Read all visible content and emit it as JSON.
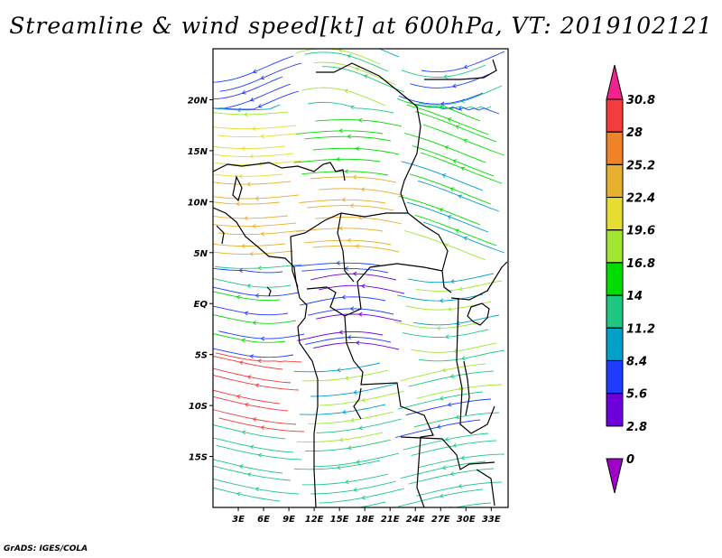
{
  "title": "Streamline & wind speed[kt] at 600hPa, VT: 2019102121",
  "credit": "GrADS: IGES/COLA",
  "map": {
    "lon_range": [
      0,
      35
    ],
    "lat_range": [
      -20,
      25
    ],
    "lat_ticks": [
      {
        "value": 20,
        "label": "20N"
      },
      {
        "value": 15,
        "label": "15N"
      },
      {
        "value": 10,
        "label": "10N"
      },
      {
        "value": 5,
        "label": "5N"
      },
      {
        "value": 0,
        "label": "EQ"
      },
      {
        "value": -5,
        "label": "5S"
      },
      {
        "value": -10,
        "label": "10S"
      },
      {
        "value": -15,
        "label": "15S"
      }
    ],
    "lon_ticks": [
      {
        "value": 3,
        "label": "3E"
      },
      {
        "value": 6,
        "label": "6E"
      },
      {
        "value": 9,
        "label": "9E"
      },
      {
        "value": 12,
        "label": "12E"
      },
      {
        "value": 15,
        "label": "15E"
      },
      {
        "value": 18,
        "label": "18E"
      },
      {
        "value": 21,
        "label": "21E"
      },
      {
        "value": 24,
        "label": "24E"
      },
      {
        "value": 27,
        "label": "27E"
      },
      {
        "value": 30,
        "label": "30E"
      },
      {
        "value": 33,
        "label": "33E"
      }
    ]
  },
  "colorbar": {
    "levels": [
      "30.8",
      "28",
      "25.2",
      "22.4",
      "19.6",
      "16.8",
      "14",
      "11.2",
      "8.4",
      "5.6",
      "2.8",
      "0"
    ],
    "colors": [
      "#f0248c",
      "#f43c3c",
      "#f08228",
      "#e6af2d",
      "#e6dc32",
      "#a0e632",
      "#00dc00",
      "#1ec882",
      "#00a0c8",
      "#1e3cff",
      "#6e00dc",
      "#a000c8"
    ]
  }
}
